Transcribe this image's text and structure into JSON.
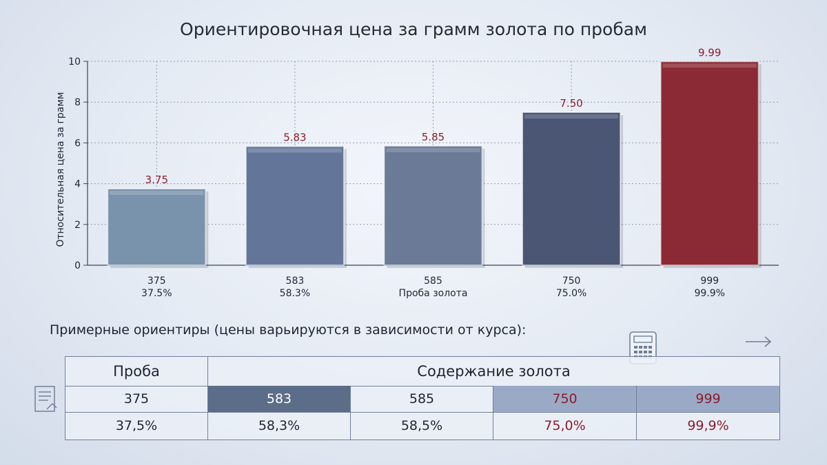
{
  "title": "Ориентировочная цена за грамм золота по пробам",
  "notes_heading": "Примерные ориентиры (цены варьируются в зависимости от курса):",
  "icons": [
    "arrow-right-icon",
    "calculator-icon",
    "document-icon"
  ],
  "chart_data": {
    "type": "bar",
    "title": "Ориентировочная цена за грамм золота по пробам",
    "xlabel": "Проба золота",
    "ylabel": "Относительная цена за грамм",
    "ylim": [
      0,
      10
    ],
    "yticks": [
      "0",
      "2",
      "4",
      "6",
      "8",
      "10"
    ],
    "grid": true,
    "categories": [
      {
        "line1": "375",
        "line2": "37.5%"
      },
      {
        "line1": "583",
        "line2": "58.3%"
      },
      {
        "line1": "585",
        "line2": ""
      },
      {
        "line1": "750",
        "line2": "75.0%"
      },
      {
        "line1": "999",
        "line2": "99.9%"
      }
    ],
    "values": [
      3.75,
      5.83,
      5.85,
      7.5,
      9.99
    ],
    "value_labels": [
      "3.75",
      "5.83",
      "5.85",
      "7.50",
      "9.99"
    ],
    "colors": [
      "#7a93ac",
      "#63769a",
      "#6a7a97",
      "#4a5673",
      "#8b2a35"
    ]
  },
  "table": {
    "header_left": "Проба",
    "header_right": "Содержание золота",
    "rows": [
      [
        "375",
        "583",
        "585",
        "750",
        "999"
      ],
      [
        "37,5%",
        "58,3%",
        "58,5%",
        "75,0%",
        "99,9%"
      ]
    ]
  }
}
